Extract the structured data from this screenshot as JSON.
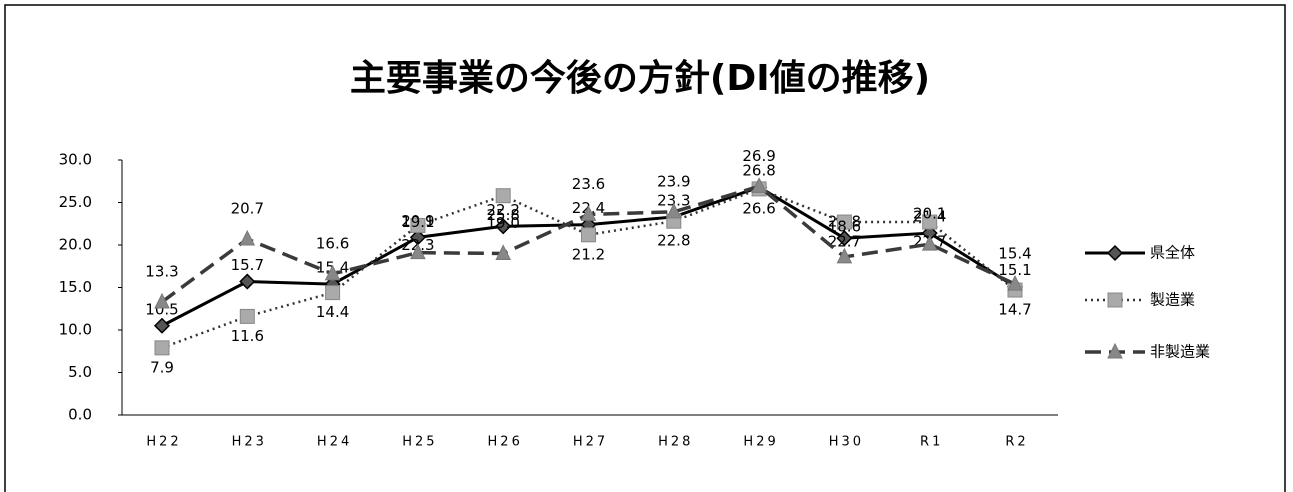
{
  "chart_data": {
    "type": "line",
    "title": "主要事業の今後の方針(DI値の推移)",
    "categories": [
      "H22",
      "H23",
      "H24",
      "H25",
      "H26",
      "H27",
      "H28",
      "H29",
      "H30",
      "R1",
      "R2"
    ],
    "ylim": [
      0,
      30
    ],
    "yticks": [
      {
        "value": 0,
        "label": "0.0"
      },
      {
        "value": 5,
        "label": "5.0"
      },
      {
        "value": 10,
        "label": "10.0"
      },
      {
        "value": 15,
        "label": "15.0"
      },
      {
        "value": 20,
        "label": "20.0"
      },
      {
        "value": 25,
        "label": "25.0"
      },
      {
        "value": 30,
        "label": "30.0"
      }
    ],
    "legend": "right",
    "series": [
      {
        "name": "県全体",
        "color": "#000000",
        "style": "solid",
        "marker": "diamond",
        "values": [
          10.5,
          15.7,
          15.4,
          20.9,
          22.2,
          22.4,
          23.3,
          26.8,
          20.8,
          21.4,
          15.1
        ]
      },
      {
        "name": "製造業",
        "color": "#333333",
        "style": "dotted",
        "marker": "square",
        "values": [
          7.9,
          11.6,
          14.4,
          22.3,
          25.8,
          21.2,
          22.8,
          26.6,
          22.7,
          22.7,
          14.7
        ]
      },
      {
        "name": "非製造業",
        "color": "#3a3a3a",
        "style": "dashed",
        "marker": "triangle",
        "values": [
          13.3,
          20.7,
          16.6,
          19.1,
          19,
          23.6,
          23.9,
          26.9,
          18.6,
          20.1,
          15.4
        ],
        "value_labels": [
          "13.3",
          "20.7",
          "16.6",
          "19.1",
          "19.0",
          "23.6",
          "23.9",
          "26.9",
          "18.6",
          "20.1",
          "15.4"
        ]
      }
    ]
  }
}
